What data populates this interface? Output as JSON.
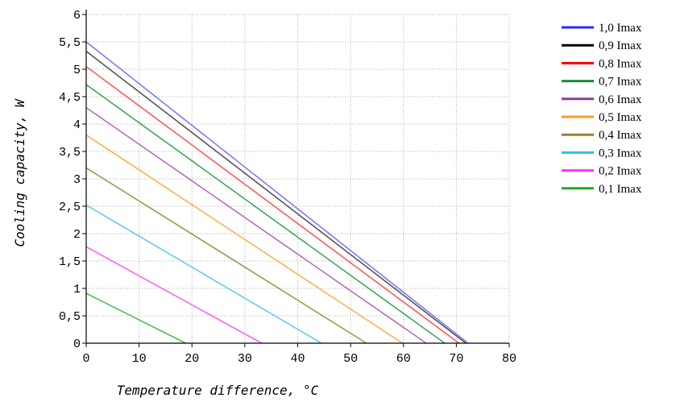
{
  "chart_data": {
    "type": "line",
    "xlabel": "Temperature difference, °C",
    "ylabel": "Cooling capacity, W",
    "xlim": [
      0,
      80
    ],
    "ylim": [
      0,
      6
    ],
    "x_ticks": [
      {
        "value": 0,
        "label": "0"
      },
      {
        "value": 10,
        "label": "10"
      },
      {
        "value": 20,
        "label": "20"
      },
      {
        "value": 30,
        "label": "30"
      },
      {
        "value": 40,
        "label": "40"
      },
      {
        "value": 50,
        "label": "50"
      },
      {
        "value": 60,
        "label": "60"
      },
      {
        "value": 70,
        "label": "70"
      },
      {
        "value": 80,
        "label": "80"
      }
    ],
    "y_ticks": [
      {
        "value": 0,
        "label": "0"
      },
      {
        "value": 0.5,
        "label": "0,5"
      },
      {
        "value": 1,
        "label": "1"
      },
      {
        "value": 1.5,
        "label": "1,5"
      },
      {
        "value": 2,
        "label": "2"
      },
      {
        "value": 2.5,
        "label": "2,5"
      },
      {
        "value": 3,
        "label": "3"
      },
      {
        "value": 3.5,
        "label": "3,5"
      },
      {
        "value": 4,
        "label": "4"
      },
      {
        "value": 4.5,
        "label": "4,5"
      },
      {
        "value": 5,
        "label": "5"
      },
      {
        "value": 5.5,
        "label": "5,5"
      },
      {
        "value": 6,
        "label": "6"
      }
    ],
    "grid": true,
    "legend": "right",
    "series": [
      {
        "name": "1,0 Imax",
        "color": "#7b7bff",
        "legend_color": "#2a2aff",
        "x": [
          0,
          72.2
        ],
        "y": [
          5.5,
          0
        ]
      },
      {
        "name": "0,9 Imax",
        "color": "#555555",
        "legend_color": "#000000",
        "x": [
          0,
          71.8
        ],
        "y": [
          5.33,
          0
        ]
      },
      {
        "name": "0,8 Imax",
        "color": "#ff5a5a",
        "legend_color": "#ff0000",
        "x": [
          0,
          70.5
        ],
        "y": [
          5.05,
          0
        ]
      },
      {
        "name": "0,7 Imax",
        "color": "#3aaa5a",
        "legend_color": "#1a8a3a",
        "x": [
          0,
          67.8
        ],
        "y": [
          4.72,
          0
        ]
      },
      {
        "name": "0,6 Imax",
        "color": "#b070b8",
        "legend_color": "#8e3a9e",
        "x": [
          0,
          64.3
        ],
        "y": [
          4.3,
          0
        ]
      },
      {
        "name": "0,5 Imax",
        "color": "#ffb050",
        "legend_color": "#ff9a20",
        "x": [
          0,
          59.8
        ],
        "y": [
          3.8,
          0
        ]
      },
      {
        "name": "0,4 Imax",
        "color": "#9e9a50",
        "legend_color": "#8c8632",
        "x": [
          0,
          53.0
        ],
        "y": [
          3.2,
          0
        ]
      },
      {
        "name": "0,3 Imax",
        "color": "#66ccf0",
        "legend_color": "#2ec0f0",
        "x": [
          0,
          44.5
        ],
        "y": [
          2.52,
          0
        ]
      },
      {
        "name": "0,2 Imax",
        "color": "#ff66ee",
        "legend_color": "#ff33ff",
        "x": [
          0,
          33.2
        ],
        "y": [
          1.76,
          0
        ]
      },
      {
        "name": "0,1 Imax",
        "color": "#55bb55",
        "legend_color": "#22aa22",
        "x": [
          0,
          18.8
        ],
        "y": [
          0.91,
          0
        ]
      }
    ]
  }
}
